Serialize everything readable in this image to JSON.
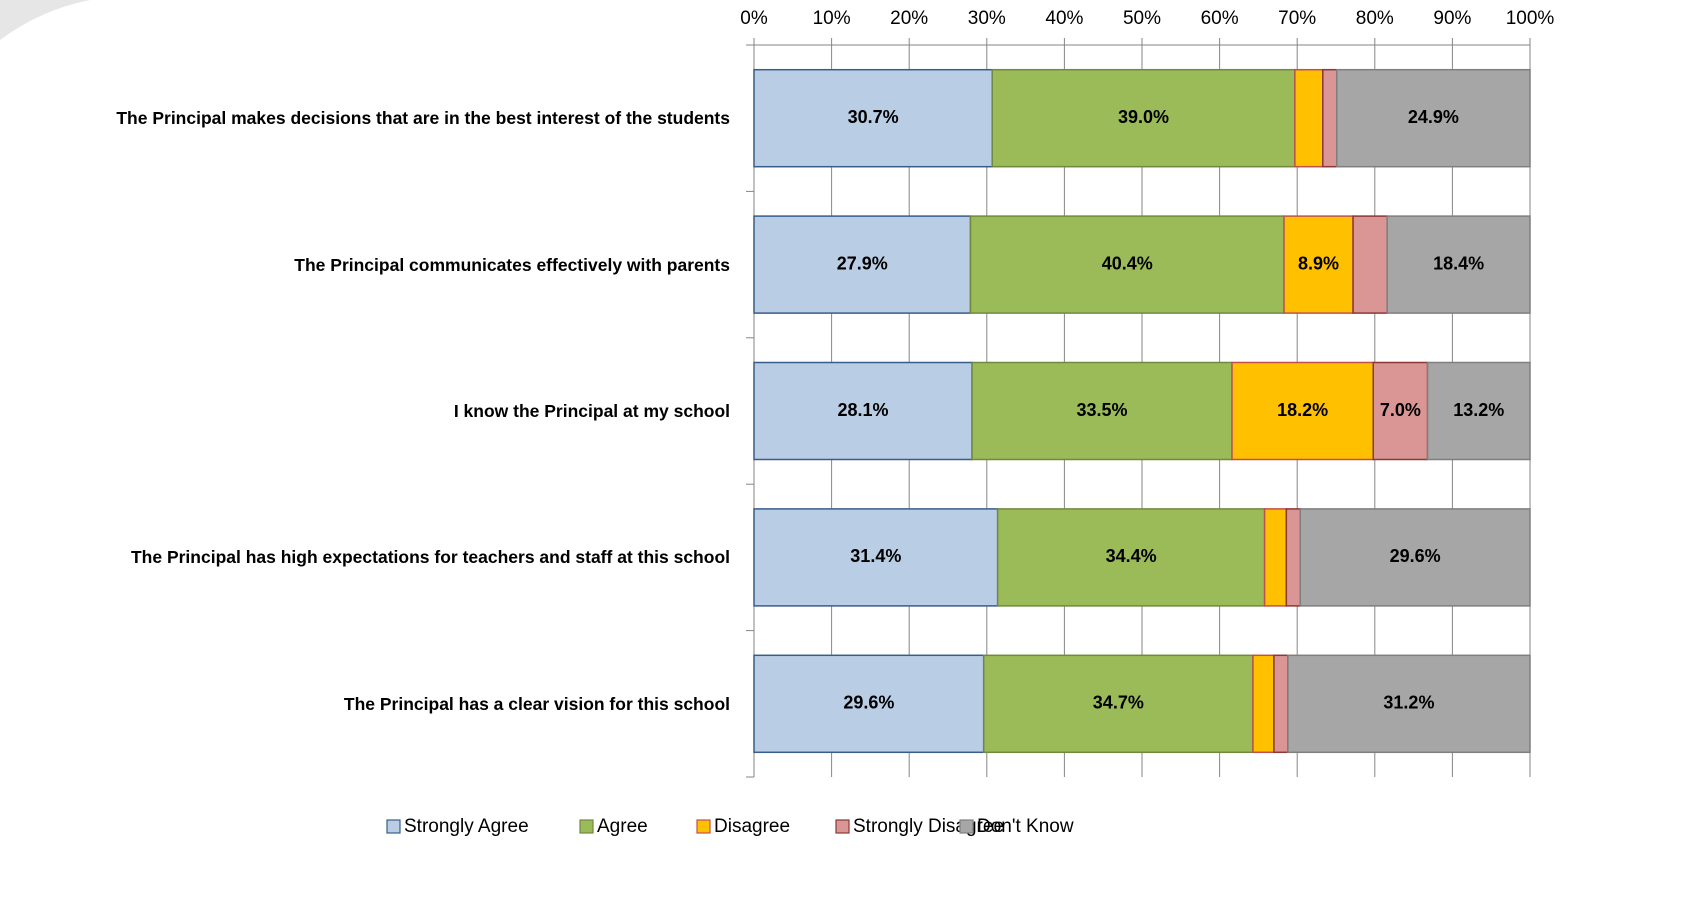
{
  "chart_data": {
    "type": "stacked_barh",
    "categories": [
      "The Principal makes decisions that are in the best interest of the students",
      "The Principal communicates effectively with parents",
      "I know the Principal at my school",
      "The Principal has high expectations for teachers and staff at this school",
      "The Principal has a clear vision for this school"
    ],
    "series": [
      {
        "name": "Strongly Agree",
        "color": "#b9cde5",
        "stroke": "#385d8a",
        "values": [
          30.7,
          27.9,
          28.1,
          31.4,
          29.6
        ],
        "value_labels": [
          "30.7%",
          "27.9%",
          "28.1%",
          "31.4%",
          "29.6%"
        ]
      },
      {
        "name": "Agree",
        "color": "#9bbb59",
        "stroke": "#71893f",
        "values": [
          39.0,
          40.4,
          33.5,
          34.4,
          34.7
        ],
        "value_labels": [
          "39.0%",
          "40.4%",
          "33.5%",
          "34.4%",
          "34.7%"
        ]
      },
      {
        "name": "Disagree",
        "color": "#ffc000",
        "stroke": "#c0504d",
        "values": [
          3.6,
          8.9,
          18.2,
          2.8,
          2.7
        ],
        "value_labels": [
          null,
          "8.9%",
          "18.2%",
          null,
          null
        ]
      },
      {
        "name": "Strongly Disagree",
        "color": "#d99694",
        "stroke": "#8c3836",
        "values": [
          1.8,
          4.4,
          7.0,
          1.8,
          1.8
        ],
        "value_labels": [
          null,
          null,
          "7.0%",
          null,
          null
        ]
      },
      {
        "name": "Don't Know",
        "color": "#a6a6a6",
        "stroke": "#7f7f7f",
        "values": [
          24.9,
          18.4,
          13.2,
          29.6,
          31.2
        ],
        "value_labels": [
          "24.9%",
          "18.4%",
          "13.2%",
          "29.6%",
          "31.2%"
        ]
      }
    ],
    "xlim": [
      0,
      100
    ],
    "xticks": [
      {
        "value": 0,
        "label": "0%"
      },
      {
        "value": 10,
        "label": "10%"
      },
      {
        "value": 20,
        "label": "20%"
      },
      {
        "value": 30,
        "label": "30%"
      },
      {
        "value": 40,
        "label": "40%"
      },
      {
        "value": 50,
        "label": "50%"
      },
      {
        "value": 60,
        "label": "60%"
      },
      {
        "value": 70,
        "label": "70%"
      },
      {
        "value": 80,
        "label": "80%"
      },
      {
        "value": 90,
        "label": "90%"
      },
      {
        "value": 100,
        "label": "100%"
      }
    ],
    "grid": true,
    "legend": "bottom"
  }
}
